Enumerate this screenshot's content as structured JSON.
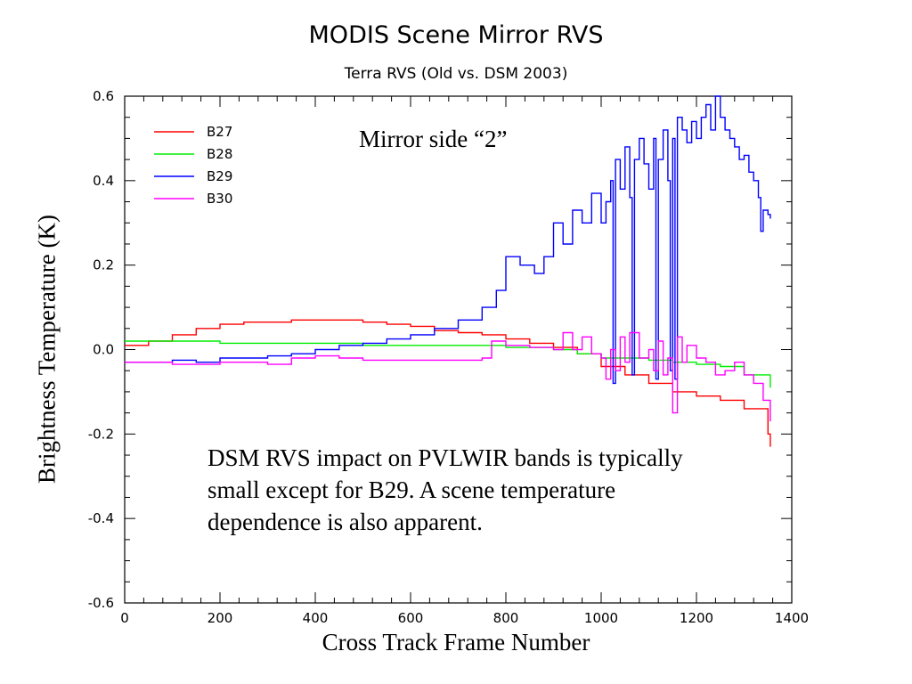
{
  "chart_data": {
    "type": "line",
    "title": "MODIS Scene Mirror RVS",
    "subtitle": "Terra RVS (Old vs. DSM 2003)",
    "xlabel": "Cross Track Frame Number",
    "ylabel": "Brightness Temperature (K)",
    "xlim": [
      0,
      1400
    ],
    "ylim": [
      -0.6,
      0.6
    ],
    "xticks": [
      0,
      200,
      400,
      600,
      800,
      1000,
      1200,
      1400
    ],
    "xtick_labels": [
      "0",
      "200",
      "400",
      "600",
      "800",
      "1000",
      "1200",
      "1400"
    ],
    "yticks": [
      0.6,
      0.4,
      0.2,
      0.0,
      -0.2,
      -0.4,
      -0.6
    ],
    "ytick_labels": [
      "0.6",
      "0.4",
      "0.2",
      "0.0",
      "-0.2",
      "-0.4",
      "-0.6"
    ],
    "grid": false,
    "legend_position": "top-left",
    "series": [
      {
        "name": "B27",
        "color": "#ff0000",
        "x": [
          0,
          50,
          100,
          150,
          200,
          250,
          300,
          350,
          400,
          450,
          500,
          550,
          600,
          650,
          700,
          750,
          800,
          850,
          900,
          950,
          1000,
          1050,
          1100,
          1150,
          1200,
          1250,
          1300,
          1350,
          1355
        ],
        "y": [
          0.01,
          0.02,
          0.035,
          0.05,
          0.06,
          0.065,
          0.065,
          0.07,
          0.07,
          0.07,
          0.065,
          0.06,
          0.055,
          0.045,
          0.04,
          0.035,
          0.025,
          0.015,
          0.005,
          -0.01,
          -0.04,
          -0.06,
          -0.08,
          -0.1,
          -0.11,
          -0.12,
          -0.14,
          -0.2,
          -0.23
        ]
      },
      {
        "name": "B28",
        "color": "#00ee00",
        "x": [
          0,
          100,
          200,
          300,
          400,
          500,
          600,
          700,
          800,
          900,
          950,
          1000,
          1050,
          1100,
          1150,
          1200,
          1250,
          1300,
          1355
        ],
        "y": [
          0.02,
          0.02,
          0.015,
          0.015,
          0.015,
          0.01,
          0.01,
          0.01,
          0.005,
          0.0,
          -0.01,
          -0.02,
          -0.02,
          -0.025,
          -0.03,
          -0.035,
          -0.04,
          -0.06,
          -0.09
        ]
      },
      {
        "name": "B29",
        "color": "#0000ff",
        "x": [
          0,
          50,
          100,
          150,
          200,
          250,
          300,
          350,
          400,
          450,
          500,
          550,
          600,
          650,
          700,
          750,
          780,
          800,
          830,
          860,
          880,
          900,
          920,
          940,
          960,
          980,
          1000,
          1010,
          1020,
          1025,
          1030,
          1040,
          1050,
          1060,
          1065,
          1070,
          1080,
          1090,
          1100,
          1110,
          1115,
          1120,
          1130,
          1140,
          1145,
          1150,
          1155,
          1160,
          1170,
          1180,
          1190,
          1200,
          1210,
          1220,
          1230,
          1240,
          1250,
          1260,
          1270,
          1280,
          1290,
          1300,
          1310,
          1320,
          1330,
          1335,
          1340,
          1350,
          1355
        ],
        "y": [
          -0.03,
          -0.03,
          -0.025,
          -0.03,
          -0.02,
          -0.02,
          -0.015,
          -0.01,
          0.0,
          0.01,
          0.015,
          0.025,
          0.035,
          0.05,
          0.07,
          0.1,
          0.14,
          0.22,
          0.2,
          0.18,
          0.22,
          0.3,
          0.25,
          0.33,
          0.3,
          0.37,
          0.3,
          0.35,
          0.4,
          -0.08,
          0.45,
          0.38,
          0.48,
          0.36,
          -0.06,
          0.45,
          0.5,
          0.44,
          0.38,
          0.5,
          -0.07,
          0.45,
          0.52,
          0.4,
          -0.05,
          0.5,
          -0.07,
          0.55,
          0.52,
          0.49,
          0.54,
          0.5,
          0.55,
          0.58,
          0.52,
          0.6,
          0.55,
          0.52,
          0.5,
          0.48,
          0.45,
          0.46,
          0.42,
          0.4,
          0.36,
          0.28,
          0.33,
          0.32,
          0.31
        ]
      },
      {
        "name": "B30",
        "color": "#ff00ff",
        "x": [
          0,
          50,
          100,
          150,
          200,
          250,
          300,
          340,
          350,
          400,
          450,
          500,
          550,
          600,
          650,
          700,
          750,
          770,
          800,
          850,
          900,
          920,
          940,
          960,
          980,
          1000,
          1010,
          1020,
          1030,
          1040,
          1050,
          1060,
          1080,
          1100,
          1110,
          1120,
          1130,
          1140,
          1150,
          1160,
          1170,
          1180,
          1200,
          1220,
          1240,
          1260,
          1280,
          1300,
          1320,
          1340,
          1355
        ],
        "y": [
          -0.03,
          -0.03,
          -0.035,
          -0.035,
          -0.03,
          -0.03,
          -0.035,
          -0.035,
          -0.02,
          -0.015,
          -0.02,
          -0.025,
          -0.025,
          -0.025,
          -0.025,
          -0.025,
          -0.02,
          0.02,
          0.01,
          0.005,
          0.0,
          0.04,
          0.0,
          0.03,
          -0.01,
          -0.02,
          -0.07,
          0.0,
          -0.05,
          0.03,
          -0.03,
          0.04,
          -0.02,
          0.0,
          -0.05,
          0.02,
          -0.06,
          -0.02,
          -0.15,
          0.03,
          -0.03,
          0.01,
          -0.02,
          -0.03,
          -0.06,
          -0.05,
          -0.03,
          -0.06,
          -0.08,
          -0.12,
          -0.17
        ]
      }
    ]
  },
  "annotations": {
    "mirror_side": "Mirror side “2”",
    "dsm_note": "DSM RVS impact on PVLWIR bands is typically small except for B29.  A scene temperature dependence is also apparent."
  }
}
